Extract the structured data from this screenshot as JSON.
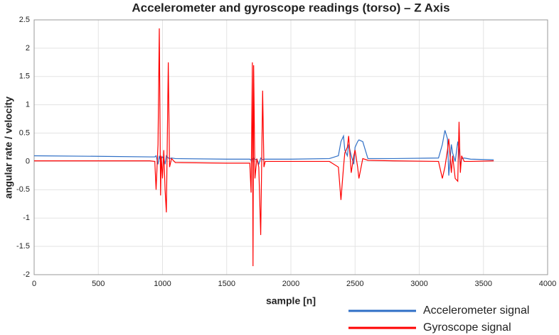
{
  "chart_data": {
    "type": "line",
    "title": "Accelerometer and gyroscope readings (torso) – Z Axis",
    "x_label": "sample [n]",
    "y_label": "angular rate / velocity",
    "x": [
      0,
      500,
      900,
      940,
      950,
      965,
      975,
      985,
      990,
      1000,
      1010,
      1020,
      1030,
      1045,
      1055,
      1070,
      1100,
      1500,
      1680,
      1690,
      1700,
      1705,
      1710,
      1720,
      1735,
      1750,
      1765,
      1780,
      1790,
      1800,
      2000,
      2300,
      2370,
      2390,
      2410,
      2420,
      2440,
      2450,
      2470,
      2490,
      2500,
      2520,
      2530,
      2560,
      2600,
      2800,
      3150,
      3180,
      3200,
      3220,
      3230,
      3250,
      3260,
      3280,
      3300,
      3310,
      3320,
      3330,
      3350,
      3400,
      3580
    ],
    "series": [
      {
        "name": "Accelerometer signal",
        "color": "#2f6fc6",
        "values": [
          0.1,
          0.09,
          0.08,
          0.08,
          0.1,
          -0.05,
          0.1,
          0.0,
          0.05,
          0.08,
          0.05,
          -0.05,
          0.1,
          0.06,
          0.05,
          0.06,
          0.05,
          0.04,
          0.04,
          0.02,
          0.05,
          -0.05,
          0.06,
          0.03,
          0.04,
          -0.05,
          0.06,
          0.03,
          0.04,
          0.04,
          0.04,
          0.05,
          0.1,
          0.35,
          0.45,
          0.2,
          0.1,
          0.3,
          0.1,
          -0.05,
          0.25,
          0.35,
          0.38,
          0.35,
          0.05,
          0.05,
          0.06,
          0.3,
          0.55,
          0.4,
          -0.25,
          0.3,
          0.15,
          0.0,
          0.35,
          0.2,
          -0.1,
          0.05,
          0.06,
          0.04,
          0.03
        ]
      },
      {
        "name": "Gyroscope signal",
        "color": "#ff0000",
        "values": [
          0.01,
          0.01,
          0.01,
          0.0,
          -0.5,
          0.3,
          2.35,
          -0.6,
          0.1,
          -0.3,
          0.2,
          -0.5,
          -0.9,
          1.75,
          -0.1,
          0.05,
          -0.02,
          -0.03,
          -0.03,
          -0.55,
          1.75,
          -1.85,
          1.7,
          -0.3,
          0.05,
          -0.1,
          -1.3,
          1.25,
          -0.1,
          0.0,
          0.0,
          0.0,
          -0.1,
          -0.68,
          -0.1,
          0.15,
          0.25,
          0.45,
          -0.2,
          0.1,
          0.2,
          -0.1,
          -0.3,
          0.05,
          0.02,
          0.01,
          0.0,
          -0.3,
          -0.1,
          0.2,
          0.4,
          -0.2,
          0.1,
          -0.3,
          -0.35,
          0.7,
          -0.2,
          0.1,
          0.0,
          0.0,
          0.01
        ]
      }
    ],
    "xlim": [
      0,
      4000
    ],
    "xticks": [
      0,
      500,
      1000,
      1500,
      2000,
      2500,
      3000,
      3500,
      4000
    ],
    "ylim": [
      -2,
      2.5
    ],
    "yticks": [
      2.5,
      2,
      1.5,
      1,
      0.5,
      0,
      -0.5,
      -1,
      -1.5,
      -2
    ],
    "grid": true,
    "legend": "bottom-right"
  }
}
